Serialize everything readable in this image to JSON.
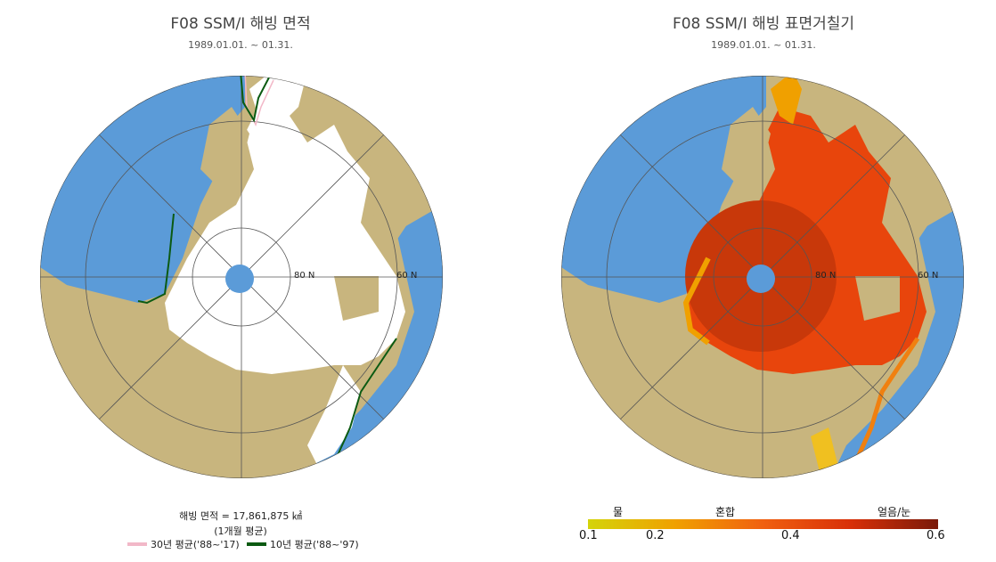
{
  "left_panel": {
    "title": "F08 SSM/I 해빙 면적",
    "subtitle": "1989.01.01. ~ 01.31.",
    "lat_labels": [
      "80 N",
      "60 N"
    ],
    "area_text": "해빙 면적 = 17,861,875 ㎢",
    "area_note": "(1개월 평균)",
    "legend": [
      {
        "label": "30년 평균('88~'17)",
        "color": "#f2b8c8"
      },
      {
        "label": "10년 평균('88~'97)",
        "color": "#0b5a12"
      }
    ]
  },
  "right_panel": {
    "title": "F08 SSM/I 해빙 표면거칠기",
    "subtitle": "1989.01.01. ~ 01.31.",
    "lat_labels": [
      "80 N",
      "60 N"
    ],
    "colorbar": {
      "category_labels": [
        "물",
        "혼합",
        "얼음/눈"
      ],
      "ticks": [
        "0.1",
        "0.2",
        "0.4",
        "0.6"
      ],
      "range": [
        0.1,
        0.6
      ],
      "colors": [
        "#d4d40a",
        "#f0a000",
        "#f06010",
        "#d83008",
        "#7a1a0a"
      ]
    }
  },
  "colors": {
    "ocean": "#5b9bd8",
    "land": "#c8b57e",
    "ice": "#ffffff",
    "pole_hole": "#5b9bd8"
  }
}
